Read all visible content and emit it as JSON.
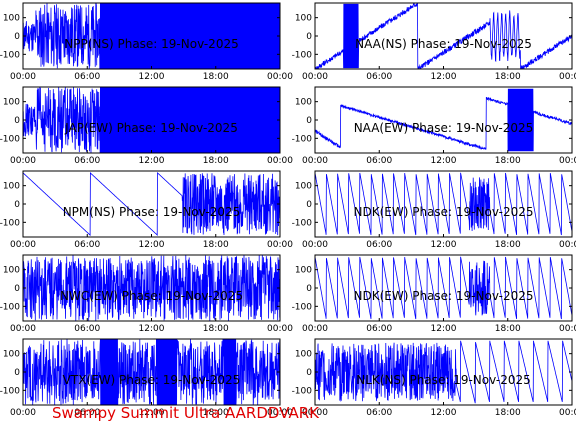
{
  "footer": "Swampy Summit Ultra AARDDVARK",
  "colors": {
    "signal": "#0000ff",
    "title": "#000000",
    "footer": "#e00000",
    "axes": "#000000"
  },
  "chart_data": [
    {
      "type": "line",
      "title": "NPP(NS) Phase: 19-Nov-2025",
      "xticks": [
        "00:00",
        "06:00",
        "12:00",
        "18:00",
        "00:00"
      ],
      "yticks": [
        "100",
        "0",
        "-100"
      ],
      "ylim": [
        -180,
        180
      ],
      "pattern": "block-dense"
    },
    {
      "type": "line",
      "title": "NAA(NS) Phase: 19-Nov-2025",
      "xticks": [
        "00:00",
        "06:00",
        "12:00",
        "18:00",
        "00:00"
      ],
      "yticks": [
        "100",
        "0",
        "-100"
      ],
      "ylim": [
        -180,
        180
      ],
      "pattern": "mixed"
    },
    {
      "type": "line",
      "title": "JAP(EW) Phase: 19-Nov-2025",
      "xticks": [
        "00:00",
        "06:00",
        "12:00",
        "18:00",
        "00:00"
      ],
      "yticks": [
        "100",
        "0",
        "-100"
      ],
      "ylim": [
        -180,
        180
      ],
      "pattern": "block-dense"
    },
    {
      "type": "line",
      "title": "NAA(EW) Phase: 19-Nov-2025",
      "xticks": [
        "00:00",
        "06:00",
        "12:00",
        "18:00",
        "00:00"
      ],
      "yticks": [
        "100",
        "0",
        "-100"
      ],
      "ylim": [
        -180,
        180
      ],
      "pattern": "mixed2"
    },
    {
      "type": "line",
      "title": "NPM(NS) Phase: 19-Nov-2025",
      "xticks": [
        "00:00",
        "06:00",
        "12:00",
        "18:00",
        "00:00"
      ],
      "yticks": [
        "100",
        "0",
        "-100"
      ],
      "ylim": [
        -180,
        180
      ],
      "pattern": "ramps-then-dense"
    },
    {
      "type": "line",
      "title": "NDK(EW) Phase: 19-Nov-2025",
      "xticks": [
        "00:00",
        "06:00",
        "12:00",
        "18:00",
        "00:00"
      ],
      "yticks": [
        "100",
        "0",
        "-100"
      ],
      "ylim": [
        -180,
        180
      ],
      "pattern": "sawtooth"
    },
    {
      "type": "line",
      "title": "NWC(EW) Phase: 19-Nov-2025",
      "xticks": [
        "00:00",
        "06:00",
        "12:00",
        "18:00",
        "00:00"
      ],
      "yticks": [
        "100",
        "0",
        "-100"
      ],
      "ylim": [
        -180,
        180
      ],
      "pattern": "dense"
    },
    {
      "type": "line",
      "title": "NDK(EW) Phase: 19-Nov-2025",
      "xticks": [
        "00:00",
        "06:00",
        "12:00",
        "18:00",
        "00:00"
      ],
      "yticks": [
        "100",
        "0",
        "-100"
      ],
      "ylim": [
        -180,
        180
      ],
      "pattern": "sawtooth"
    },
    {
      "type": "line",
      "title": "VTX(EW) Phase: 19-Nov-2025",
      "xticks": [
        "00:00",
        "06:00",
        "12:00",
        "18:00",
        "00:00"
      ],
      "yticks": [
        "100",
        "0",
        "-100"
      ],
      "ylim": [
        -180,
        180
      ],
      "pattern": "dense-blocks"
    },
    {
      "type": "line",
      "title": "NLK(NS) Phase: 19-Nov-2025",
      "xticks": [
        "00:00",
        "06:00",
        "12:00",
        "18:00",
        "00:00"
      ],
      "yticks": [
        "100",
        "0",
        "-100"
      ],
      "ylim": [
        -180,
        180
      ],
      "pattern": "dense-saw"
    }
  ]
}
